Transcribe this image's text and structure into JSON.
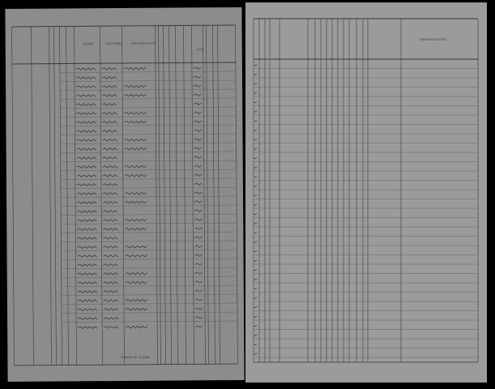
{
  "left_page": {
    "headers": {
      "names": "NOMS",
      "first_names": "PRÉNOMS",
      "professions": "PROFESSIONS",
      "age": "AGE"
    },
    "totals_label": "Totaux de la page"
  },
  "right_page": {
    "headers": {
      "observations": "OBSERVATIONS"
    }
  },
  "colors": {
    "left_paper": "#8c8c8c",
    "right_paper": "#9b9b9b",
    "ink": "#333333",
    "background": "#000000"
  }
}
